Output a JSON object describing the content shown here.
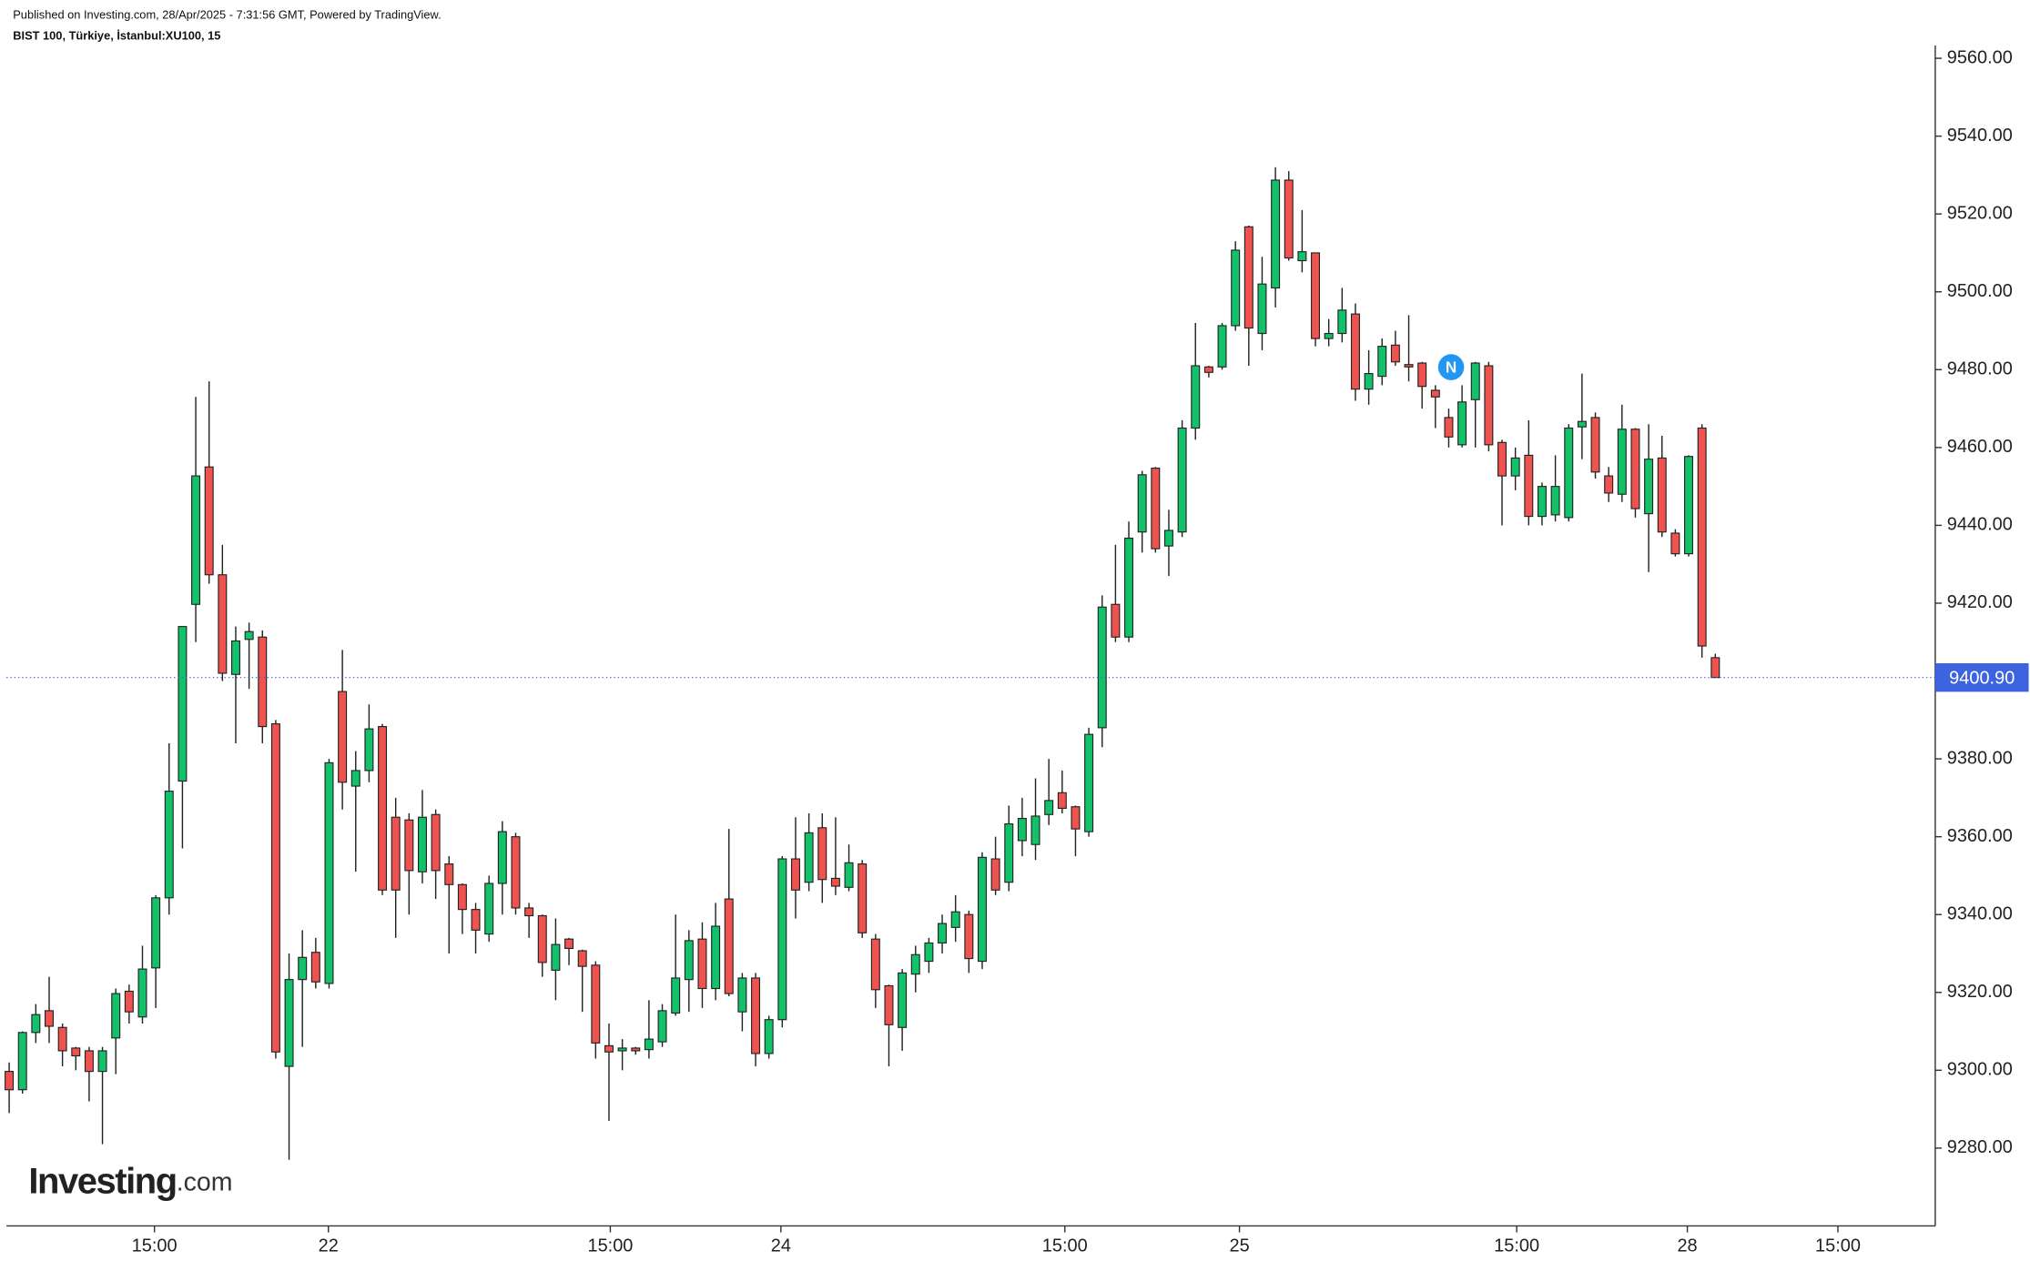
{
  "header": {
    "published": "Published on Investing.com, 28/Apr/2025 - 7:31:56 GMT, Powered by TradingView.",
    "symbol": "BIST 100, Türkiye, İstanbul:XU100, 15"
  },
  "logo": {
    "brand": "Investing",
    "suffix": ".com"
  },
  "annotations": [
    {
      "text": "N"
    }
  ],
  "chart_data": {
    "type": "candlestick",
    "up_color": "#12c26a",
    "down_color": "#ef5350",
    "open": [
      9299.7,
      9295,
      9309.7,
      9315.3,
      9311,
      9305.7,
      9305,
      9299.7,
      9308.3,
      9320.3,
      9313.7,
      9326.3,
      9344.3,
      9374.3,
      9419.7,
      9455,
      9427.3,
      9401.7,
      9410.7,
      9411.3,
      9389,
      9301,
      9323.3,
      9330.3,
      9322.3,
      9397.3,
      9373,
      9377,
      9388.3,
      9365,
      9364.3,
      9351,
      9365.7,
      9353,
      9347.7,
      9341.3,
      9335,
      9348,
      9360,
      9341.7,
      9339.7,
      9325.7,
      9333.7,
      9330.7,
      9327,
      9306.3,
      9305,
      9305.7,
      9305.3,
      9307.3,
      9314.7,
      9323.3,
      9333.7,
      9321,
      9344,
      9315,
      9323.7,
      9304.3,
      9313,
      9354.3,
      9348.3,
      9362.3,
      9349.3,
      9347,
      9353,
      9333.7,
      9321.7,
      9311,
      9324.7,
      9328,
      9332.7,
      9336.7,
      9340,
      9328,
      9354.3,
      9348.3,
      9359,
      9358,
      9365.7,
      9371.3,
      9367.7,
      9361.3,
      9388,
      9419.7,
      9411.3,
      9438.3,
      9454.7,
      9434.7,
      9438.3,
      9465,
      9480.7,
      9480.7,
      9491.3,
      9516.7,
      9489.3,
      9501,
      9528.7,
      9508,
      9510,
      9488,
      9489.3,
      9494.3,
      9475,
      9478.3,
      9486.3,
      9481.3,
      9481.7,
      9474.7,
      9467.7,
      9460.7,
      9472.3,
      9481,
      9461.3,
      9452.7,
      9458,
      9442.3,
      9442.7,
      9442,
      9465.3,
      9467.7,
      9452.7,
      9448,
      9464.7,
      9443,
      9457.3,
      9438,
      9432.7,
      9465,
      9406
    ],
    "high": [
      9302,
      9310,
      9317,
      9324,
      9312,
      9306,
      9306,
      9306,
      9321,
      9322,
      9332,
      9345,
      9384,
      9414,
      9473,
      9477,
      9435,
      9414,
      9415,
      9413,
      9390,
      9330,
      9336,
      9334,
      9380,
      9408,
      9382,
      9394,
      9389,
      9370,
      9366,
      9372,
      9367,
      9355,
      9348,
      9343,
      9350,
      9364,
      9361,
      9343,
      9340,
      9339,
      9334,
      9331,
      9328,
      9312,
      9308,
      9306,
      9318,
      9317,
      9340,
      9336,
      9338,
      9343,
      9362,
      9325,
      9325,
      9314,
      9355,
      9365,
      9366,
      9366,
      9365,
      9358,
      9354,
      9335,
      9322,
      9326,
      9332,
      9334,
      9340,
      9345,
      9341,
      9356,
      9360,
      9368,
      9370,
      9375,
      9380,
      9377,
      9368,
      9388,
      9422,
      9435,
      9441,
      9454,
      9455,
      9444,
      9467,
      9492,
      9481,
      9492,
      9513,
      9517,
      9509,
      9532,
      9531,
      9521,
      9510,
      9493,
      9501,
      9497,
      9485,
      9488,
      9490,
      9494,
      9482,
      9476,
      9470,
      9476,
      9482,
      9482,
      9462,
      9460,
      9467,
      9451,
      9458,
      9466,
      9479,
      9469,
      9455,
      9471,
      9465,
      9466,
      9463,
      9439,
      9458,
      9466,
      9407
    ],
    "low": [
      9289,
      9294,
      9307,
      9307,
      9301,
      9300,
      9292,
      9281,
      9299,
      9312,
      9312,
      9316,
      9340,
      9357,
      9410,
      9425,
      9400,
      9384,
      9398,
      9384,
      9303,
      9277,
      9306,
      9321,
      9321,
      9367,
      9351,
      9374,
      9345,
      9334,
      9340,
      9348,
      9344,
      9330,
      9335,
      9330,
      9333,
      9340,
      9340,
      9334,
      9324,
      9318,
      9327,
      9315,
      9303,
      9287,
      9300,
      9304,
      9303,
      9306,
      9314,
      9315,
      9316,
      9318,
      9319,
      9310,
      9301,
      9303,
      9311,
      9339,
      9346,
      9343,
      9345,
      9346,
      9334,
      9316,
      9301,
      9305,
      9320,
      9325,
      9330,
      9333,
      9325,
      9326,
      9345,
      9346,
      9355,
      9354,
      9363,
      9366,
      9355,
      9360,
      9383,
      9410,
      9410,
      9433,
      9433,
      9427,
      9437,
      9462,
      9478,
      9480,
      9490,
      9481,
      9485,
      9496,
      9508,
      9505,
      9486,
      9486,
      9487,
      9472,
      9471,
      9476,
      9481,
      9477,
      9470,
      9465,
      9460,
      9460,
      9460,
      9459,
      9440,
      9449,
      9440,
      9440,
      9441,
      9441,
      9457,
      9452,
      9446,
      9446,
      9442,
      9428,
      9437,
      9432,
      9432,
      9406,
      9400.9
    ],
    "close": [
      9295,
      9309.7,
      9314.3,
      9311.3,
      9305,
      9303.7,
      9299.7,
      9305,
      9319.7,
      9315,
      9326,
      9344.3,
      9371.7,
      9414,
      9452.7,
      9427.3,
      9402,
      9410.3,
      9412.7,
      9388.3,
      9304.7,
      9323.3,
      9329,
      9322.7,
      9379,
      9374,
      9377,
      9387.7,
      9346.3,
      9346.3,
      9351.3,
      9365,
      9351.3,
      9347.7,
      9341.3,
      9336,
      9348,
      9361.3,
      9341.7,
      9339.7,
      9327.7,
      9332.3,
      9331.3,
      9326.7,
      9307,
      9304.7,
      9305.7,
      9305,
      9308,
      9315.3,
      9323.7,
      9333.3,
      9321,
      9337,
      9319.7,
      9323.7,
      9304.3,
      9313,
      9354.3,
      9346.3,
      9361,
      9349,
      9347.3,
      9353.3,
      9335.3,
      9320.7,
      9311.7,
      9325,
      9329.7,
      9332.7,
      9337.7,
      9340.7,
      9328.7,
      9354.7,
      9346.3,
      9363.3,
      9364.7,
      9365.3,
      9369.3,
      9367.3,
      9362,
      9386.3,
      9419,
      9411.3,
      9436.7,
      9453,
      9434,
      9438.7,
      9465,
      9481,
      9479.3,
      9491.3,
      9510.7,
      9490.7,
      9502,
      9528.7,
      9508.7,
      9510.3,
      9488,
      9489.3,
      9495.3,
      9475,
      9479,
      9486,
      9482,
      9480.7,
      9475.7,
      9473,
      9462.7,
      9471.7,
      9481.7,
      9460.7,
      9452.7,
      9457.3,
      9442.3,
      9450,
      9450,
      9465,
      9466.7,
      9453.7,
      9448.3,
      9464.7,
      9444.3,
      9457,
      9438.3,
      9432.7,
      9457.7,
      9409,
      9400.9
    ],
    "xlim": [
      -0.2,
      144.5
    ],
    "xticks": [
      {
        "value": 10.9,
        "label": "15:00"
      },
      {
        "value": 23.95,
        "label": "22"
      },
      {
        "value": 45.1,
        "label": "15:00"
      },
      {
        "value": 57.9,
        "label": "24"
      },
      {
        "value": 79.2,
        "label": "15:00"
      },
      {
        "value": 92.3,
        "label": "25"
      },
      {
        "value": 113.1,
        "label": "15:00"
      },
      {
        "value": 125.9,
        "label": "28"
      },
      {
        "value": 137.2,
        "label": "15:00"
      }
    ],
    "ylim": [
      9260,
      9563.3
    ],
    "yticks": [
      {
        "value": 9280,
        "label": "9280.00"
      },
      {
        "value": 9300,
        "label": "9300.00"
      },
      {
        "value": 9320,
        "label": "9320.00"
      },
      {
        "value": 9340,
        "label": "9340.00"
      },
      {
        "value": 9360,
        "label": "9360.00"
      },
      {
        "value": 9380,
        "label": "9380.00"
      },
      {
        "value": 9400,
        "label": "9400.00"
      },
      {
        "value": 9420,
        "label": "9420.00"
      },
      {
        "value": 9440,
        "label": "9440.00"
      },
      {
        "value": 9460,
        "label": "9460.00"
      },
      {
        "value": 9480,
        "label": "9480.00"
      },
      {
        "value": 9500,
        "label": "9500.00"
      },
      {
        "value": 9520,
        "label": "9520.00"
      },
      {
        "value": 9540,
        "label": "9540.00"
      },
      {
        "value": 9560,
        "label": "9560.00"
      }
    ],
    "last_price": {
      "value": 9400.9,
      "label": "9400.90"
    },
    "last_price_color": "#3d63e0"
  }
}
